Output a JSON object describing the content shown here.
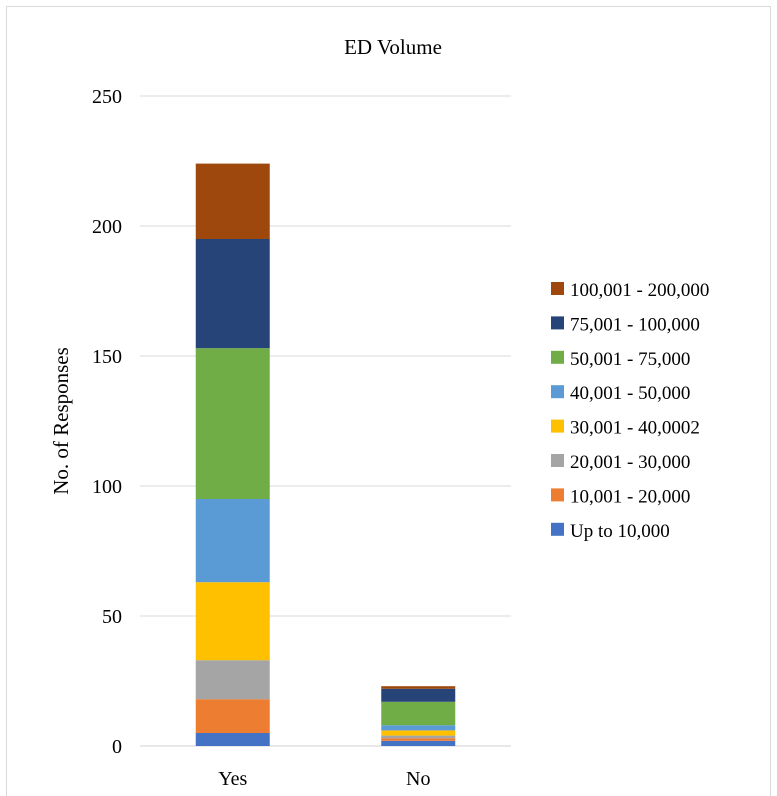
{
  "chart_data": {
    "type": "bar",
    "stacked": true,
    "title": "ED Volume",
    "xlabel": "",
    "ylabel": "No. of Responses",
    "categories": [
      "Yes",
      "No"
    ],
    "ylim": [
      0,
      250
    ],
    "yticks": [
      0,
      50,
      100,
      150,
      200,
      250
    ],
    "grid": true,
    "legend_position": "right",
    "series": [
      {
        "name": "Up to 10,000",
        "color": "#4472C4",
        "values": [
          5,
          2
        ]
      },
      {
        "name": "10,001 - 20,000",
        "color": "#ED7D31",
        "values": [
          13,
          1
        ]
      },
      {
        "name": "20,001 - 30,000",
        "color": "#A5A5A5",
        "values": [
          15,
          1
        ]
      },
      {
        "name": "30,001 - 40,0002",
        "color": "#FFC000",
        "values": [
          30,
          2
        ]
      },
      {
        "name": "40,001 - 50,000",
        "color": "#5B9BD5",
        "values": [
          32,
          2
        ]
      },
      {
        "name": "50,001 - 75,000",
        "color": "#70AD47",
        "values": [
          58,
          9
        ]
      },
      {
        "name": "75,001 - 100,000",
        "color": "#264478",
        "values": [
          42,
          5
        ]
      },
      {
        "name": "100,001 - 200,000",
        "color": "#9E480E",
        "values": [
          29,
          1
        ]
      }
    ]
  }
}
